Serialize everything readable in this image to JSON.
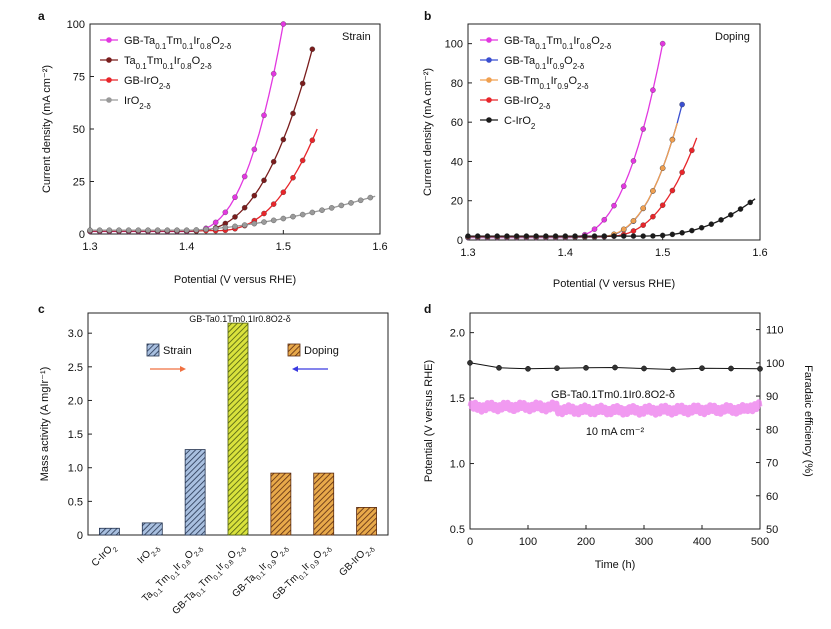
{
  "chart_data": [
    {
      "panel": "a",
      "type": "line",
      "corner_label": "Strain",
      "xlabel": "Potential (V versus RHE)",
      "ylabel": "Current density (mA cm⁻²)",
      "xlim": [
        1.3,
        1.6
      ],
      "ylim": [
        0,
        100
      ],
      "xticks": [
        "1.3",
        "1.4",
        "1.5",
        "1.6"
      ],
      "yticks": [
        "0",
        "25",
        "50",
        "75",
        "100"
      ],
      "series": [
        {
          "name": "GB-Ta0.1Tm0.1Ir0.8O2-δ",
          "color": "#e238e0",
          "onset": 1.4,
          "end": 1.5,
          "ymax": 100,
          "pow": 2.6
        },
        {
          "name": "Ta0.1Tm0.1Ir0.8O2-δ",
          "color": "#7a1d1d",
          "onset": 1.405,
          "end": 1.53,
          "ymax": 88,
          "pow": 2.5
        },
        {
          "name": "GB-IrO2-δ",
          "color": "#e8262b",
          "onset": 1.43,
          "end": 1.535,
          "ymax": 50,
          "pow": 2.4
        },
        {
          "name": "IrO2-δ",
          "color": "#9a9a9a",
          "onset": 1.4,
          "end": 1.595,
          "ymax": 18,
          "pow": 1.6
        }
      ]
    },
    {
      "panel": "b",
      "type": "line",
      "corner_label": "Doping",
      "xlabel": "Potential (V versus RHE)",
      "ylabel": "Current density (mA cm⁻²)",
      "xlim": [
        1.3,
        1.6
      ],
      "ylim": [
        0,
        110
      ],
      "xticks": [
        "1.3",
        "1.4",
        "1.5",
        "1.6"
      ],
      "yticks": [
        "0",
        "20",
        "40",
        "60",
        "80",
        "100"
      ],
      "series": [
        {
          "name": "GB-Ta0.1Tm0.1Ir0.8O2-δ",
          "color": "#e238e0",
          "onset": 1.4,
          "end": 1.5,
          "ymax": 100,
          "pow": 2.6
        },
        {
          "name": "GB-Ta0.1Ir0.9O2-δ",
          "color": "#3a4fd0",
          "onset": 1.43,
          "end": 1.52,
          "ymax": 69,
          "pow": 2.6
        },
        {
          "name": "GB-Tm0.1Ir0.9O2-δ",
          "color": "#f0a050",
          "onset": 1.43,
          "end": 1.518,
          "ymax": 65,
          "pow": 2.6
        },
        {
          "name": "GB-IrO2-δ",
          "color": "#e8262b",
          "onset": 1.44,
          "end": 1.535,
          "ymax": 52,
          "pow": 2.5
        },
        {
          "name": "C-IrO2",
          "color": "#1a1a1a",
          "onset": 1.48,
          "end": 1.595,
          "ymax": 21,
          "pow": 2.3
        }
      ]
    },
    {
      "panel": "c",
      "type": "bar",
      "xlabel": "",
      "ylabel": "Mass activity (A mgIr⁻¹)",
      "ylim": [
        0,
        3.3
      ],
      "yticks": [
        "0",
        "0.5",
        "1.0",
        "1.5",
        "2.0",
        "2.5",
        "3.0"
      ],
      "categories": [
        "C-IrO2",
        "IrO2-δ",
        "Ta0.1Tm0.1Ir0.8O2-δ",
        "GB-Ta0.1Tm0.1Ir0.8O2-δ",
        "GB-Ta0.1Ir0.9O2-δ",
        "GB-Tm0.1Ir0.9O2-δ",
        "GB-IrO2-δ"
      ],
      "values": [
        0.1,
        0.18,
        1.27,
        3.15,
        0.92,
        0.92,
        0.41
      ],
      "styles": [
        "strain",
        "strain",
        "strain",
        "top",
        "doping",
        "doping",
        "doping"
      ],
      "legend_strain": "Strain",
      "legend_doping": "Doping",
      "top_label": "GB-Ta0.1Tm0.1Ir0.8O2-δ"
    },
    {
      "panel": "d",
      "type": "line",
      "xlabel": "Time (h)",
      "ylabel": "Potential (V versus RHE)",
      "ylabel_right": "Faradaic efficiency (%)",
      "xlim": [
        0,
        500
      ],
      "ylim": [
        0.5,
        2.15
      ],
      "ylim_right": [
        50,
        115
      ],
      "xticks": [
        "0",
        "100",
        "200",
        "300",
        "400",
        "500"
      ],
      "yticks": [
        "0.5",
        "1.0",
        "1.5",
        "2.0"
      ],
      "yticks_right": [
        "50",
        "60",
        "70",
        "80",
        "90",
        "100",
        "110"
      ],
      "potential_series": {
        "name": "GB-Ta0.1Tm0.1Ir0.8O2-δ",
        "color": "#ee88ee",
        "level": 1.43
      },
      "faradaic_series": {
        "x": [
          0,
          50,
          100,
          150,
          200,
          250,
          300,
          350,
          400,
          450,
          500
        ],
        "values": [
          100,
          98.5,
          98.2,
          98.4,
          98.5,
          98.6,
          98.3,
          98.0,
          98.4,
          98.3,
          98.2
        ]
      },
      "annotation": "10 mA cm⁻²"
    }
  ]
}
